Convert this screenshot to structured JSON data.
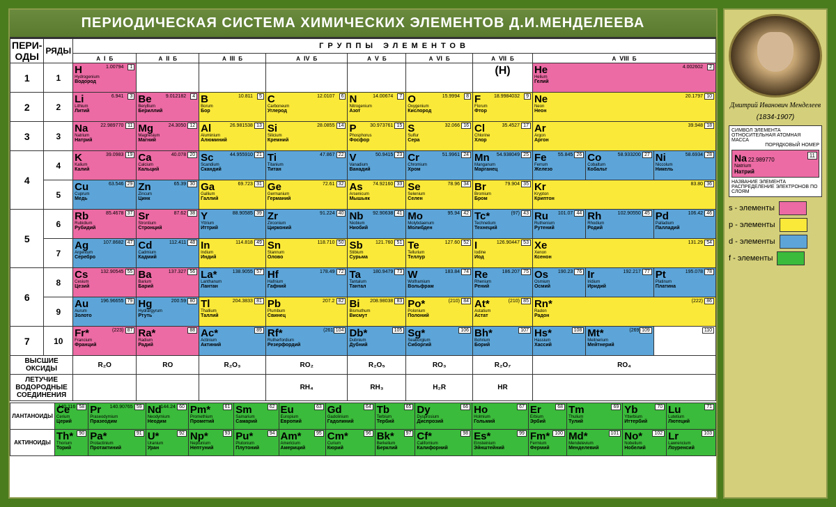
{
  "title": "ПЕРИОДИЧЕСКАЯ СИСТЕМА ХИМИЧЕСКИХ ЭЛЕМЕНТОВ Д.И.МЕНДЕЛЕЕВА",
  "headers": {
    "periods": "ПЕРИ-\nОДЫ",
    "rows": "РЯДЫ",
    "groups_title": "ГРУППЫ ЭЛЕМЕНТОВ",
    "roman": [
      "I",
      "II",
      "III",
      "IV",
      "V",
      "VI",
      "VII",
      "VIII"
    ],
    "sub": [
      "А",
      "Б"
    ]
  },
  "colors": {
    "s": "#ec6ba4",
    "p": "#fbe939",
    "d": "#5da5d8",
    "f": "#3bbb3b",
    "frame": "#4a7c1e",
    "sidebar": "#d4cf7a"
  },
  "oxides": {
    "label": "ВЫСШИЕ\nОКСИДЫ",
    "vals": [
      "R₂O",
      "RO",
      "R₂O₃",
      "RO₂",
      "R₂O₅",
      "RO₃",
      "R₂O₇",
      "RO₄"
    ]
  },
  "hydrides": {
    "label": "ЛЕТУЧИЕ\nВОДОРОДНЫЕ\nСОЕДИНЕНИЯ",
    "vals": [
      "",
      "",
      "",
      "RH₄",
      "RH₃",
      "H₂R",
      "HR",
      ""
    ]
  },
  "sidebar": {
    "name": "Дмитрий Иванович\nМенделеев",
    "years": "(1834-1907)",
    "legend_title_symbol": "СИМВОЛ ЭЛЕМЕНТА",
    "legend_title_mass": "ОТНОСИТЕЛЬНАЯ АТОМНАЯ МАССА",
    "legend_title_num": "ПОРЯДКОВЫЙ НОМЕР",
    "legend_title_name": "НАЗВАНИЕ ЭЛЕМЕНТА",
    "legend_title_electron": "РАСПРЕДЕЛЕНИЕ ЭЛЕКТРОНОВ ПО СЛОЯМ",
    "sample": {
      "sym": "Na",
      "num": "11",
      "mass": "22.989770",
      "lat": "Natrium",
      "rus": "Натрий"
    },
    "legend": [
      {
        "label": "s - элементы",
        "color": "#ec6ba4"
      },
      {
        "label": "p - элементы",
        "color": "#fbe939"
      },
      {
        "label": "d - элементы",
        "color": "#5da5d8"
      },
      {
        "label": "f - элементы",
        "color": "#3bbb3b"
      }
    ]
  },
  "lan_label": "ЛАНТАНОИДЫ",
  "act_label": "АКТИНОИДЫ",
  "rows": [
    {
      "p": "1",
      "r": "1",
      "cells": [
        {
          "t": "s",
          "n": "1",
          "s": "H",
          "m": "1.00794",
          "l": "Hydrogenium",
          "ru": "Водород"
        },
        null,
        null,
        null,
        null,
        null,
        {
          "t": "empty",
          "raw": "(H)"
        },
        {
          "t": "s",
          "n": "2",
          "s": "He",
          "m": "4.002602",
          "l": "Helium",
          "ru": "Гелий",
          "span": 3
        }
      ]
    },
    {
      "p": "2",
      "r": "2",
      "cells": [
        {
          "t": "s",
          "n": "3",
          "s": "Li",
          "m": "6.941",
          "l": "Lithium",
          "ru": "Литий"
        },
        {
          "t": "s",
          "n": "4",
          "s": "Be",
          "m": "9.012182",
          "l": "Beryllium",
          "ru": "Бериллий"
        },
        {
          "t": "p",
          "n": "5",
          "s": "B",
          "m": "10.811",
          "l": "Borum",
          "ru": "Бор"
        },
        {
          "t": "p",
          "n": "6",
          "s": "C",
          "m": "12.0107",
          "l": "Carboneum",
          "ru": "Углерод"
        },
        {
          "t": "p",
          "n": "7",
          "s": "N",
          "m": "14.00674",
          "l": "Nitrogenium",
          "ru": "Азот"
        },
        {
          "t": "p",
          "n": "8",
          "s": "O",
          "m": "15.9994",
          "l": "Oxygenium",
          "ru": "Кислород"
        },
        {
          "t": "p",
          "n": "9",
          "s": "F",
          "m": "18.9984032",
          "l": "Florum",
          "ru": "Фтор"
        },
        {
          "t": "p",
          "n": "10",
          "s": "Ne",
          "m": "20.1797",
          "l": "Neon",
          "ru": "Неон",
          "span": 3
        }
      ]
    },
    {
      "p": "3",
      "r": "3",
      "cells": [
        {
          "t": "s",
          "n": "11",
          "s": "Na",
          "m": "22.989770",
          "l": "Natrium",
          "ru": "Натрий"
        },
        {
          "t": "s",
          "n": "12",
          "s": "Mg",
          "m": "24.3050",
          "l": "Magnesium",
          "ru": "Магний"
        },
        {
          "t": "p",
          "n": "13",
          "s": "Al",
          "m": "26.981538",
          "l": "Aluminium",
          "ru": "Алюминий"
        },
        {
          "t": "p",
          "n": "14",
          "s": "Si",
          "m": "28.0855",
          "l": "Silicium",
          "ru": "Кремний"
        },
        {
          "t": "p",
          "n": "15",
          "s": "P",
          "m": "30.973761",
          "l": "Phosphorus",
          "ru": "Фосфор"
        },
        {
          "t": "p",
          "n": "16",
          "s": "S",
          "m": "32.066",
          "l": "Sulfur",
          "ru": "Сера"
        },
        {
          "t": "p",
          "n": "17",
          "s": "Cl",
          "m": "35.4527",
          "l": "Chlorine",
          "ru": "Хлор"
        },
        {
          "t": "p",
          "n": "18",
          "s": "Ar",
          "m": "39.948",
          "l": "Argon",
          "ru": "Аргон",
          "span": 3
        }
      ]
    },
    {
      "p": "4",
      "r": "4",
      "cells": [
        {
          "t": "s",
          "n": "19",
          "s": "K",
          "m": "39.0983",
          "l": "Kalium",
          "ru": "Калий"
        },
        {
          "t": "s",
          "n": "20",
          "s": "Ca",
          "m": "40.078",
          "l": "Calcium",
          "ru": "Кальций"
        },
        {
          "t": "d",
          "n": "21",
          "s": "Sc",
          "m": "44.955910",
          "l": "Scandium",
          "ru": "Скандий"
        },
        {
          "t": "d",
          "n": "22",
          "s": "Ti",
          "m": "47.867",
          "l": "Titanium",
          "ru": "Титан"
        },
        {
          "t": "d",
          "n": "23",
          "s": "V",
          "m": "50.9415",
          "l": "Vanadium",
          "ru": "Ванадий"
        },
        {
          "t": "d",
          "n": "24",
          "s": "Cr",
          "m": "51.9961",
          "l": "Chromium",
          "ru": "Хром"
        },
        {
          "t": "d",
          "n": "25",
          "s": "Mn",
          "m": "54.938049",
          "l": "Manganum",
          "ru": "Марганец"
        },
        {
          "t": "d",
          "n": "26",
          "s": "Fe",
          "m": "55.845",
          "l": "Ferrum",
          "ru": "Железо"
        },
        {
          "t": "d",
          "n": "27",
          "s": "Co",
          "m": "58.933200",
          "l": "Cobaltum",
          "ru": "Кобальт"
        },
        {
          "t": "d",
          "n": "28",
          "s": "Ni",
          "m": "58.6934",
          "l": "Niccolum",
          "ru": "Никель"
        }
      ]
    },
    {
      "p": "",
      "r": "5",
      "cells": [
        {
          "t": "d",
          "n": "29",
          "s": "Cu",
          "m": "63.546",
          "l": "Cuprum",
          "ru": "Медь"
        },
        {
          "t": "d",
          "n": "30",
          "s": "Zn",
          "m": "65.39",
          "l": "Zincum",
          "ru": "Цинк"
        },
        {
          "t": "p",
          "n": "31",
          "s": "Ga",
          "m": "69.723",
          "l": "Gallium",
          "ru": "Галлий"
        },
        {
          "t": "p",
          "n": "32",
          "s": "Ge",
          "m": "72.61",
          "l": "Germanium",
          "ru": "Германий"
        },
        {
          "t": "p",
          "n": "33",
          "s": "As",
          "m": "74.92160",
          "l": "Arsenicum",
          "ru": "Мышьяк"
        },
        {
          "t": "p",
          "n": "34",
          "s": "Se",
          "m": "78.96",
          "l": "Selenium",
          "ru": "Селен"
        },
        {
          "t": "p",
          "n": "35",
          "s": "Br",
          "m": "79.904",
          "l": "Bromium",
          "ru": "Бром"
        },
        {
          "t": "p",
          "n": "36",
          "s": "Kr",
          "m": "83.80",
          "l": "Krypton",
          "ru": "Криптон",
          "span": 3
        }
      ]
    },
    {
      "p": "5",
      "r": "6",
      "cells": [
        {
          "t": "s",
          "n": "37",
          "s": "Rb",
          "m": "85.4678",
          "l": "Rubidium",
          "ru": "Рубидий"
        },
        {
          "t": "s",
          "n": "38",
          "s": "Sr",
          "m": "87.62",
          "l": "Strontium",
          "ru": "Стронций"
        },
        {
          "t": "d",
          "n": "39",
          "s": "Y",
          "m": "88.90585",
          "l": "Yttrium",
          "ru": "Иттрий"
        },
        {
          "t": "d",
          "n": "40",
          "s": "Zr",
          "m": "91.224",
          "l": "Zirconium",
          "ru": "Цирконий"
        },
        {
          "t": "d",
          "n": "41",
          "s": "Nb",
          "m": "92.90638",
          "l": "Niobium",
          "ru": "Ниобий"
        },
        {
          "t": "d",
          "n": "42",
          "s": "Mo",
          "m": "95.94",
          "l": "Molybdaenum",
          "ru": "Молибден"
        },
        {
          "t": "d",
          "n": "43",
          "s": "Tc*",
          "m": "(97)",
          "l": "Technetium",
          "ru": "Технеций"
        },
        {
          "t": "d",
          "n": "44",
          "s": "Ru",
          "m": "101.07",
          "l": "Ruthenium",
          "ru": "Рутений"
        },
        {
          "t": "d",
          "n": "45",
          "s": "Rh",
          "m": "102.90550",
          "l": "Rhodium",
          "ru": "Родий"
        },
        {
          "t": "d",
          "n": "46",
          "s": "Pd",
          "m": "106.42",
          "l": "Palladium",
          "ru": "Палладий"
        }
      ]
    },
    {
      "p": "",
      "r": "7",
      "cells": [
        {
          "t": "d",
          "n": "47",
          "s": "Ag",
          "m": "107.8682",
          "l": "Argentum",
          "ru": "Серебро"
        },
        {
          "t": "d",
          "n": "48",
          "s": "Cd",
          "m": "112.411",
          "l": "Cadmium",
          "ru": "Кадмий"
        },
        {
          "t": "p",
          "n": "49",
          "s": "In",
          "m": "114.818",
          "l": "Indium",
          "ru": "Индий"
        },
        {
          "t": "p",
          "n": "50",
          "s": "Sn",
          "m": "118.710",
          "l": "Stannum",
          "ru": "Олово"
        },
        {
          "t": "p",
          "n": "51",
          "s": "Sb",
          "m": "121.760",
          "l": "Stibium",
          "ru": "Сурьма"
        },
        {
          "t": "p",
          "n": "52",
          "s": "Te",
          "m": "127.60",
          "l": "Tellurium",
          "ru": "Теллур"
        },
        {
          "t": "p",
          "n": "53",
          "s": "I",
          "m": "126.90447",
          "l": "Iodine",
          "ru": "Иод"
        },
        {
          "t": "p",
          "n": "54",
          "s": "Xe",
          "m": "131.29",
          "l": "Xenon",
          "ru": "Ксенон",
          "span": 3
        }
      ]
    },
    {
      "p": "6",
      "r": "8",
      "cells": [
        {
          "t": "s",
          "n": "55",
          "s": "Cs",
          "m": "132.90545",
          "l": "Cesium",
          "ru": "Цезий"
        },
        {
          "t": "s",
          "n": "56",
          "s": "Ba",
          "m": "137.327",
          "l": "Barium",
          "ru": "Барий"
        },
        {
          "t": "d",
          "n": "57",
          "s": "La*",
          "m": "138.9055",
          "l": "Lanthanum",
          "ru": "Лантан"
        },
        {
          "t": "d",
          "n": "72",
          "s": "Hf",
          "m": "178.49",
          "l": "Hafnium",
          "ru": "Гафний"
        },
        {
          "t": "d",
          "n": "73",
          "s": "Ta",
          "m": "180.9479",
          "l": "Tantalum",
          "ru": "Тантал"
        },
        {
          "t": "d",
          "n": "74",
          "s": "W",
          "m": "183.84",
          "l": "Wolframium",
          "ru": "Вольфрам"
        },
        {
          "t": "d",
          "n": "75",
          "s": "Re",
          "m": "186.207",
          "l": "Rhenium",
          "ru": "Рений"
        },
        {
          "t": "d",
          "n": "76",
          "s": "Os",
          "m": "190.23",
          "l": "Osmium",
          "ru": "Осмий"
        },
        {
          "t": "d",
          "n": "77",
          "s": "Ir",
          "m": "192.217",
          "l": "Iridium",
          "ru": "Иридий"
        },
        {
          "t": "d",
          "n": "78",
          "s": "Pt",
          "m": "195.078",
          "l": "Platinum",
          "ru": "Платина"
        }
      ]
    },
    {
      "p": "",
      "r": "9",
      "cells": [
        {
          "t": "d",
          "n": "79",
          "s": "Au",
          "m": "196.96655",
          "l": "Aurum",
          "ru": "Золото"
        },
        {
          "t": "d",
          "n": "80",
          "s": "Hg",
          "m": "200.59",
          "l": "Hydrargyrum",
          "ru": "Ртуть"
        },
        {
          "t": "p",
          "n": "81",
          "s": "Tl",
          "m": "204.3833",
          "l": "Thallium",
          "ru": "Таллий"
        },
        {
          "t": "p",
          "n": "82",
          "s": "Pb",
          "m": "207.2",
          "l": "Plumbum",
          "ru": "Свинец"
        },
        {
          "t": "p",
          "n": "83",
          "s": "Bi",
          "m": "208.98038",
          "l": "Bismuthum",
          "ru": "Висмут"
        },
        {
          "t": "p",
          "n": "84",
          "s": "Po*",
          "m": "(210)",
          "l": "Polonium",
          "ru": "Полоний"
        },
        {
          "t": "p",
          "n": "85",
          "s": "At*",
          "m": "(210)",
          "l": "Astatium",
          "ru": "Астат"
        },
        {
          "t": "p",
          "n": "86",
          "s": "Rn*",
          "m": "(222)",
          "l": "Radon",
          "ru": "Радон",
          "span": 3
        }
      ]
    },
    {
      "p": "7",
      "r": "10",
      "cells": [
        {
          "t": "s",
          "n": "87",
          "s": "Fr*",
          "m": "(223)",
          "l": "Francium",
          "ru": "Франций"
        },
        {
          "t": "s",
          "n": "88",
          "s": "Ra*",
          "m": "",
          "l": "Radium",
          "ru": "Радий"
        },
        {
          "t": "d",
          "n": "89",
          "s": "Ac*",
          "m": "",
          "l": "Actinium",
          "ru": "Актиний"
        },
        {
          "t": "d",
          "n": "104",
          "s": "Rf*",
          "m": "(261)",
          "l": "Rutherfordium",
          "ru": "Резерфордий"
        },
        {
          "t": "d",
          "n": "105",
          "s": "Db*",
          "m": "",
          "l": "Dubnium",
          "ru": "Дубний"
        },
        {
          "t": "d",
          "n": "106",
          "s": "Sg*",
          "m": "",
          "l": "Seaborgium",
          "ru": "Сиборгий"
        },
        {
          "t": "d",
          "n": "107",
          "s": "Bh*",
          "m": "",
          "l": "Bohrium",
          "ru": "Борий"
        },
        {
          "t": "d",
          "n": "108",
          "s": "Hs*",
          "m": "",
          "l": "Hassium",
          "ru": "Хассий"
        },
        {
          "t": "d",
          "n": "109",
          "s": "Mt*",
          "m": "(269)",
          "l": "Meitnerium",
          "ru": "Мейтнерий"
        },
        {
          "t": "empty",
          "n": "110",
          "s": "",
          "m": "",
          "l": "",
          "ru": ""
        }
      ]
    }
  ],
  "lanthanides": [
    {
      "n": "58",
      "s": "Ce",
      "m": "140.116",
      "l": "Cerium",
      "ru": "Церий"
    },
    {
      "n": "59",
      "s": "Pr",
      "m": "140.90765",
      "l": "Praseodymium",
      "ru": "Празеодим"
    },
    {
      "n": "60",
      "s": "Nd",
      "m": "144.24",
      "l": "Neodymium",
      "ru": "Неодим"
    },
    {
      "n": "61",
      "s": "Pm*",
      "m": "",
      "l": "Promethium",
      "ru": "Прометий"
    },
    {
      "n": "62",
      "s": "Sm",
      "m": "",
      "l": "Samarium",
      "ru": "Самарий"
    },
    {
      "n": "63",
      "s": "Eu",
      "m": "",
      "l": "Europium",
      "ru": "Европий"
    },
    {
      "n": "64",
      "s": "Gd",
      "m": "",
      "l": "Gadolinium",
      "ru": "Гадолиний"
    },
    {
      "n": "65",
      "s": "Tb",
      "m": "",
      "l": "Terbium",
      "ru": "Тербий"
    },
    {
      "n": "66",
      "s": "Dy",
      "m": "",
      "l": "Dysprosium",
      "ru": "Диспрозий"
    },
    {
      "n": "67",
      "s": "Ho",
      "m": "",
      "l": "Holmium",
      "ru": "Гольмий"
    },
    {
      "n": "68",
      "s": "Er",
      "m": "",
      "l": "Erbium",
      "ru": "Эрбий"
    },
    {
      "n": "69",
      "s": "Tm",
      "m": "",
      "l": "Thulium",
      "ru": "Тулий"
    },
    {
      "n": "70",
      "s": "Yb",
      "m": "",
      "l": "Ytterbium",
      "ru": "Иттербий"
    },
    {
      "n": "71",
      "s": "Lu",
      "m": "",
      "l": "Lutetium",
      "ru": "Лютеций"
    }
  ],
  "actinides": [
    {
      "n": "90",
      "s": "Th*",
      "m": "",
      "l": "Thorium",
      "ru": "Торий"
    },
    {
      "n": "91",
      "s": "Pa*",
      "m": "",
      "l": "Protactinium",
      "ru": "Протактиний"
    },
    {
      "n": "92",
      "s": "U*",
      "m": "",
      "l": "Uranium",
      "ru": "Уран"
    },
    {
      "n": "93",
      "s": "Np*",
      "m": "",
      "l": "Neptunium",
      "ru": "Нептуний"
    },
    {
      "n": "94",
      "s": "Pu*",
      "m": "",
      "l": "Plutonium",
      "ru": "Плутоний"
    },
    {
      "n": "95",
      "s": "Am*",
      "m": "",
      "l": "Americium",
      "ru": "Америций"
    },
    {
      "n": "96",
      "s": "Cm*",
      "m": "",
      "l": "Curium",
      "ru": "Кюрий"
    },
    {
      "n": "97",
      "s": "Bk*",
      "m": "",
      "l": "Berkelium",
      "ru": "Берклий"
    },
    {
      "n": "98",
      "s": "Cf*",
      "m": "",
      "l": "Californium",
      "ru": "Калифорний"
    },
    {
      "n": "99",
      "s": "Es*",
      "m": "",
      "l": "Einsteinium",
      "ru": "Эйнштейний"
    },
    {
      "n": "100",
      "s": "Fm*",
      "m": "",
      "l": "Fermium",
      "ru": "Фермий"
    },
    {
      "n": "101",
      "s": "Md*",
      "m": "",
      "l": "Mendelevium",
      "ru": "Менделевий"
    },
    {
      "n": "102",
      "s": "No*",
      "m": "",
      "l": "Nobelium",
      "ru": "Нобелий"
    },
    {
      "n": "103",
      "s": "Lr",
      "m": "",
      "l": "Lawrencium",
      "ru": "Лоуренсий"
    }
  ]
}
